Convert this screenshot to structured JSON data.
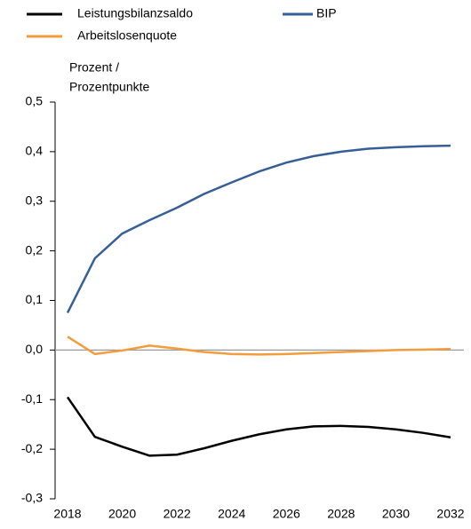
{
  "chart_data": {
    "type": "line",
    "y_label": [
      "Prozent /",
      "Prozentpunkte"
    ],
    "x": [
      2018,
      2019,
      2020,
      2021,
      2022,
      2023,
      2024,
      2025,
      2026,
      2027,
      2028,
      2029,
      2030,
      2031,
      2032
    ],
    "xlim": [
      2018,
      2032
    ],
    "xticks": [
      2018,
      2020,
      2022,
      2024,
      2026,
      2028,
      2030,
      2032
    ],
    "ylim": [
      -0.3,
      0.5
    ],
    "yticks": [
      {
        "value": -0.3,
        "label": "-0,3"
      },
      {
        "value": -0.2,
        "label": "-0,2"
      },
      {
        "value": -0.1,
        "label": "-0,1"
      },
      {
        "value": 0,
        "label": "0,0"
      },
      {
        "value": 0.1,
        "label": "0,1"
      },
      {
        "value": 0.2,
        "label": "0,2"
      },
      {
        "value": 0.3,
        "label": "0,3"
      },
      {
        "value": 0.4,
        "label": "0,4"
      },
      {
        "value": 0.5,
        "label": "0,5"
      }
    ],
    "zero_line": true,
    "series": [
      {
        "name": "Leistungsbilanzsaldo",
        "color": "#000000",
        "values": [
          -0.095,
          -0.175,
          -0.195,
          -0.213,
          -0.211,
          -0.198,
          -0.183,
          -0.17,
          -0.16,
          -0.154,
          -0.153,
          -0.155,
          -0.16,
          -0.167,
          -0.176
        ]
      },
      {
        "name": "BIP",
        "color": "#365f97",
        "values": [
          0.075,
          0.185,
          0.235,
          0.262,
          0.287,
          0.315,
          0.338,
          0.36,
          0.378,
          0.391,
          0.4,
          0.406,
          0.409,
          0.411,
          0.412
        ]
      },
      {
        "name": "Arbeitslosenquote",
        "color": "#f39c3c",
        "values": [
          0.027,
          -0.008,
          -0.001,
          0.009,
          0.003,
          -0.004,
          -0.008,
          -0.009,
          -0.008,
          -0.006,
          -0.004,
          -0.002,
          0.0,
          0.001,
          0.002
        ]
      }
    ]
  }
}
